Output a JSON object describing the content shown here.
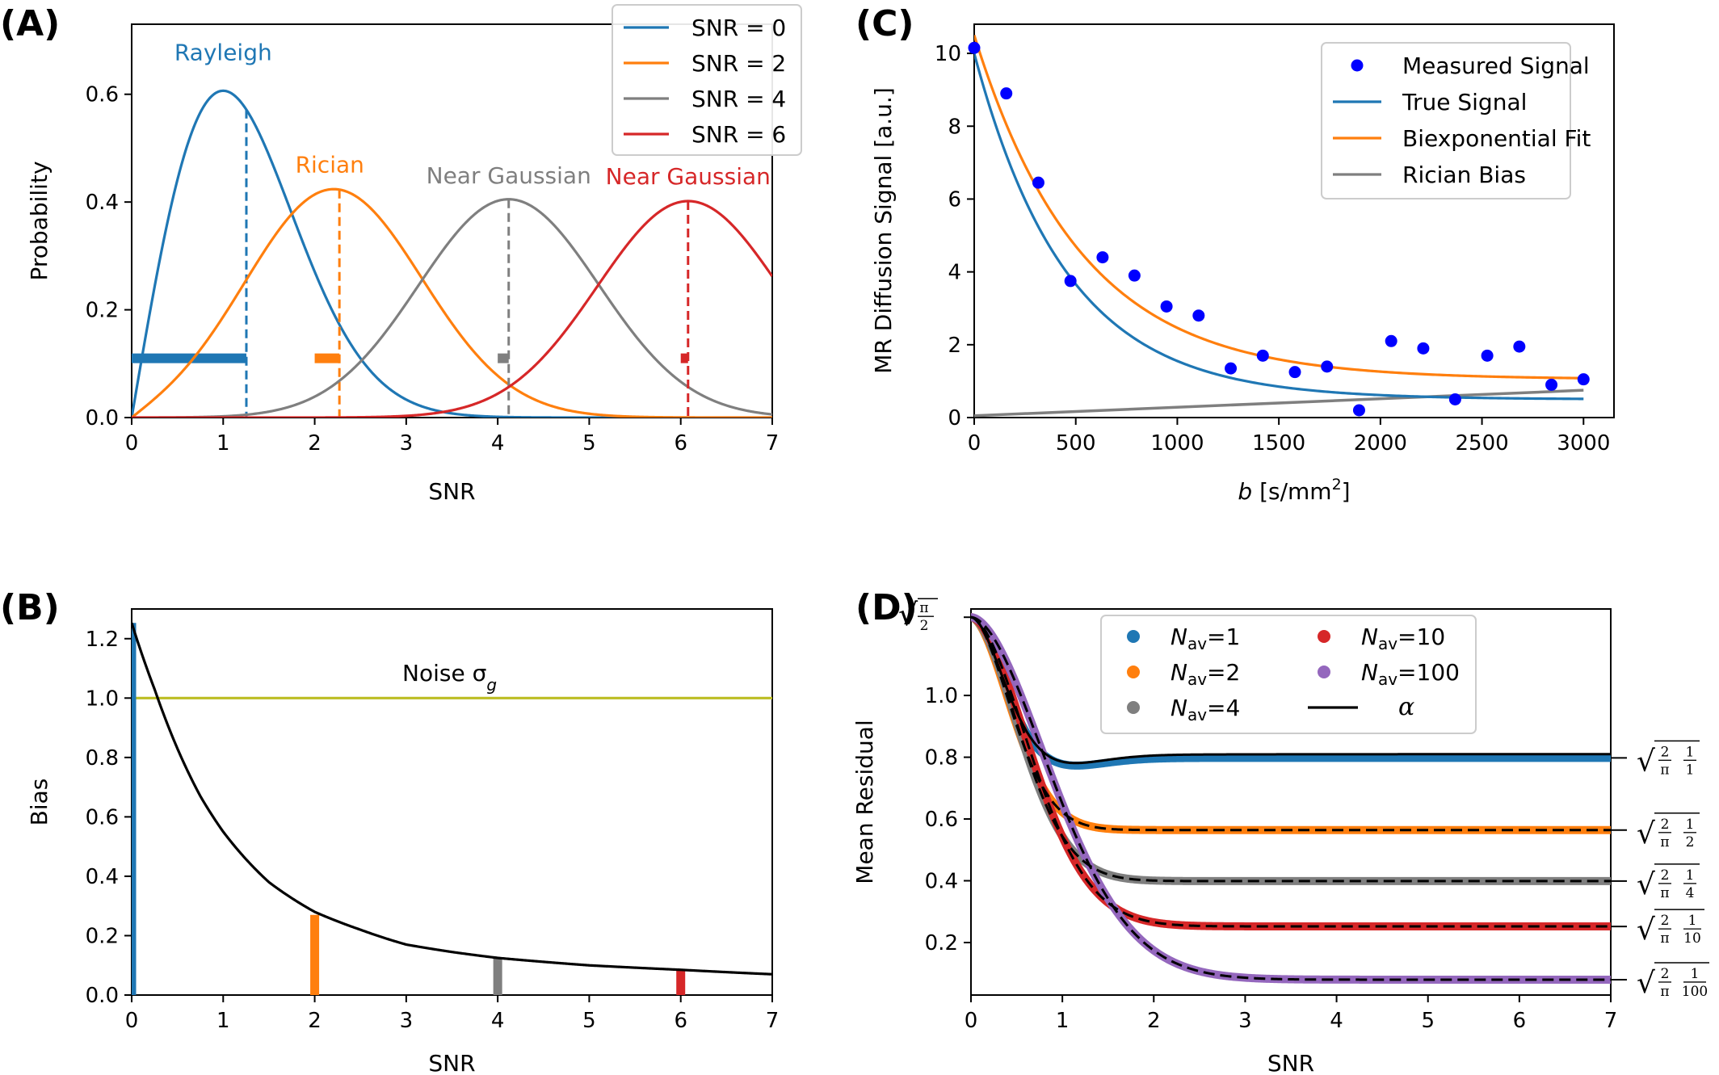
{
  "chart_data": [
    {
      "panel": "(A)",
      "type": "line",
      "xlabel": "SNR",
      "ylabel": "Probability",
      "xlim": [
        0,
        7
      ],
      "ylim": [
        0,
        0.73
      ],
      "xticks": [
        "0",
        "1",
        "2",
        "3",
        "4",
        "5",
        "6",
        "7"
      ],
      "yticks": [
        "0.0",
        "0.2",
        "0.4",
        "0.6"
      ],
      "grid": false,
      "legend_position": "top-right",
      "series": [
        {
          "name": "SNR = 0",
          "nu": 0,
          "color": "#1f77b4",
          "mean": 1.2533,
          "peak": 0.6065,
          "annotation": "Rayleigh",
          "bias_bar": [
            0.0,
            1.2533
          ]
        },
        {
          "name": "SNR = 2",
          "nu": 2,
          "color": "#ff7f0e",
          "mean": 2.27,
          "peak": 0.425,
          "annotation": "Rician",
          "bias_bar": [
            2.0,
            2.27
          ]
        },
        {
          "name": "SNR = 4",
          "nu": 4,
          "color": "#7f7f7f",
          "mean": 4.12,
          "peak": 0.405,
          "annotation": "Near Gaussian",
          "bias_bar": [
            4.0,
            4.12
          ]
        },
        {
          "name": "SNR = 6",
          "nu": 6,
          "color": "#d62728",
          "mean": 6.08,
          "peak": 0.403,
          "annotation": "Near Gaussian",
          "bias_bar": [
            6.0,
            6.08
          ]
        }
      ]
    },
    {
      "panel": "(B)",
      "type": "line",
      "xlabel": "SNR",
      "ylabel": "Bias",
      "xlim": [
        0,
        7
      ],
      "ylim": [
        0,
        1.3
      ],
      "xticks": [
        "0",
        "1",
        "2",
        "3",
        "4",
        "5",
        "6",
        "7"
      ],
      "yticks": [
        "0.0",
        "0.2",
        "0.4",
        "0.6",
        "0.8",
        "1.0",
        "1.2"
      ],
      "grid": false,
      "annotation": "Noise σ",
      "annotation_subscript": "g",
      "noise_level": 1.0,
      "noise_color": "#bcbd22",
      "bias_curve": {
        "x": [
          0,
          0.25,
          0.5,
          0.75,
          1,
          1.5,
          2,
          2.5,
          3,
          3.5,
          4,
          5,
          6,
          7
        ],
        "y": [
          1.253,
          1.03,
          0.83,
          0.67,
          0.55,
          0.38,
          0.28,
          0.22,
          0.17,
          0.145,
          0.125,
          0.1,
          0.085,
          0.07
        ]
      },
      "bars": [
        {
          "x": 0,
          "value": 1.253,
          "color": "#1f77b4"
        },
        {
          "x": 2,
          "value": 0.27,
          "color": "#ff7f0e"
        },
        {
          "x": 4,
          "value": 0.125,
          "color": "#7f7f7f"
        },
        {
          "x": 6,
          "value": 0.085,
          "color": "#d62728"
        }
      ]
    },
    {
      "panel": "(C)",
      "type": "scatter",
      "xlabel": "b [s/mm²]",
      "xlabel_parts": {
        "var": "b",
        "pre": " [s/mm",
        "sup": "2",
        "post": "]"
      },
      "ylabel": "MR Diffusion Signal [a.u.]",
      "xlim": [
        0,
        3150
      ],
      "ylim": [
        0,
        10.8
      ],
      "xticks": [
        "0",
        "500",
        "1000",
        "1500",
        "2000",
        "2500",
        "3000"
      ],
      "yticks": [
        "0",
        "2",
        "4",
        "6",
        "8",
        "10"
      ],
      "grid": false,
      "legend_position": "top-right",
      "measured": {
        "name": "Measured Signal",
        "color": "#0000ff",
        "x": [
          0,
          158,
          316,
          474,
          632,
          789,
          947,
          1105,
          1263,
          1421,
          1579,
          1737,
          1895,
          2053,
          2211,
          2368,
          2526,
          2684,
          2842,
          3000
        ],
        "y": [
          10.15,
          8.9,
          6.45,
          3.75,
          4.4,
          3.9,
          3.05,
          2.8,
          1.35,
          1.7,
          1.25,
          1.4,
          0.2,
          2.1,
          1.9,
          0.5,
          1.7,
          1.95,
          0.9,
          1.05
        ]
      },
      "true_signal": {
        "name": "True Signal",
        "color": "#1f77b4",
        "S0": 10.0,
        "f": 0.95,
        "D1": 0.0022,
        "D2": 0.0
      },
      "fit": {
        "name": "Biexponential Fit",
        "color": "#ff7f0e",
        "S0": 10.5,
        "f": 0.9,
        "D1": 0.0019,
        "D2": 0.0
      },
      "rician_bias": {
        "name": "Rician Bias",
        "color": "#7f7f7f",
        "x": [
          0,
          3000
        ],
        "y": [
          0.05,
          0.75
        ]
      }
    },
    {
      "panel": "(D)",
      "type": "line",
      "xlabel": "SNR",
      "ylabel": "Mean Residual",
      "xlim": [
        0,
        7
      ],
      "ylim": [
        0.03,
        1.28
      ],
      "xticks": [
        "0",
        "1",
        "2",
        "3",
        "4",
        "5",
        "6",
        "7"
      ],
      "yticks": [
        "0.2",
        "0.4",
        "0.6",
        "0.8",
        "1.0"
      ],
      "top_tick": {
        "outer": "√",
        "num": "π",
        "den": "2",
        "value": 1.2533
      },
      "grid": false,
      "legend_position": "top-center",
      "series": [
        {
          "name_var": "N",
          "name_sub": "av",
          "name_val": "=1",
          "n": 1,
          "color": "#1f77b4"
        },
        {
          "name_var": "N",
          "name_sub": "av",
          "name_val": "=2",
          "n": 2,
          "color": "#ff7f0e"
        },
        {
          "name_var": "N",
          "name_sub": "av",
          "name_val": "=4",
          "n": 4,
          "color": "#7f7f7f"
        },
        {
          "name_var": "N",
          "name_sub": "av",
          "name_val": "=10",
          "n": 10,
          "color": "#d62728"
        },
        {
          "name_var": "N",
          "name_sub": "av",
          "name_val": "=100",
          "n": 100,
          "color": "#9467bd"
        }
      ],
      "alpha_legend": "α",
      "right_ticks": [
        {
          "value": 0.798,
          "num": "1",
          "den": "1"
        },
        {
          "value": 0.564,
          "num": "1",
          "den": "2"
        },
        {
          "value": 0.399,
          "num": "1",
          "den": "4"
        },
        {
          "value": 0.252,
          "num": "1",
          "den": "10"
        },
        {
          "value": 0.0798,
          "num": "1",
          "den": "100"
        }
      ],
      "right_tick_prefix": {
        "num": "2",
        "den": "π"
      }
    }
  ]
}
